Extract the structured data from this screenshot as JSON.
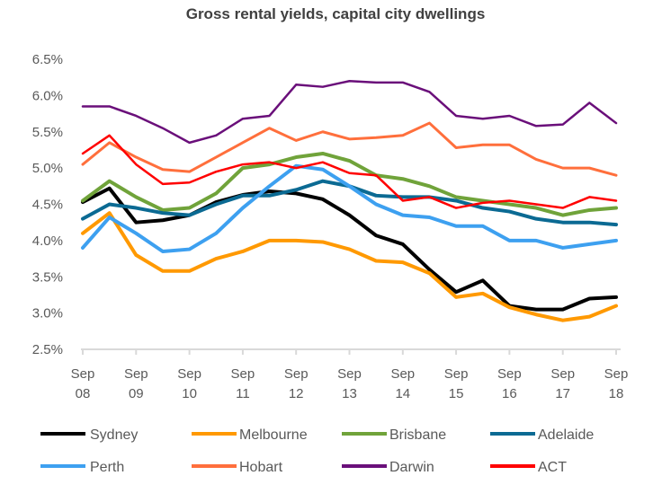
{
  "chart_data": {
    "type": "line",
    "title": "Gross rental yields, capital city dwellings",
    "xlabel": "",
    "ylabel": "",
    "ylim": [
      2.5,
      6.5
    ],
    "yticks": [
      "2.5%",
      "3.0%",
      "3.5%",
      "4.0%",
      "4.5%",
      "5.0%",
      "5.5%",
      "6.0%",
      "6.5%"
    ],
    "xticks": [
      [
        "Sep",
        "08"
      ],
      [
        "Sep",
        "09"
      ],
      [
        "Sep",
        "10"
      ],
      [
        "Sep",
        "11"
      ],
      [
        "Sep",
        "12"
      ],
      [
        "Sep",
        "13"
      ],
      [
        "Sep",
        "14"
      ],
      [
        "Sep",
        "15"
      ],
      [
        "Sep",
        "16"
      ],
      [
        "Sep",
        "17"
      ],
      [
        "Sep",
        "18"
      ]
    ],
    "x": [
      "Sep 08",
      "Mar 09",
      "Sep 09",
      "Mar 10",
      "Sep 10",
      "Mar 11",
      "Sep 11",
      "Mar 12",
      "Sep 12",
      "Mar 13",
      "Sep 13",
      "Mar 14",
      "Sep 14",
      "Mar 15",
      "Sep 15",
      "Mar 16",
      "Sep 16",
      "Mar 17",
      "Sep 17",
      "Mar 18",
      "Sep 18"
    ],
    "grid": false,
    "legend": "bottom",
    "series": [
      {
        "name": "Sydney",
        "color": "#000000",
        "width": 4,
        "values": [
          4.53,
          4.72,
          4.25,
          4.28,
          4.35,
          4.53,
          4.63,
          4.68,
          4.65,
          4.57,
          4.35,
          4.07,
          3.95,
          3.6,
          3.29,
          3.45,
          3.1,
          3.05,
          3.05,
          3.2,
          3.22
        ]
      },
      {
        "name": "Melbourne",
        "color": "#FF9900",
        "width": 4,
        "values": [
          4.1,
          4.38,
          3.8,
          3.58,
          3.58,
          3.75,
          3.85,
          4.0,
          4.0,
          3.98,
          3.88,
          3.72,
          3.7,
          3.55,
          3.22,
          3.27,
          3.08,
          2.98,
          2.9,
          2.95,
          3.1
        ]
      },
      {
        "name": "Brisbane",
        "color": "#70A33A",
        "width": 4,
        "values": [
          4.55,
          4.82,
          4.6,
          4.42,
          4.45,
          4.65,
          5.0,
          5.05,
          5.15,
          5.2,
          5.1,
          4.9,
          4.85,
          4.75,
          4.6,
          4.55,
          4.5,
          4.45,
          4.35,
          4.42,
          4.45
        ]
      },
      {
        "name": "Adelaide",
        "color": "#0B6A93",
        "width": 4,
        "values": [
          4.3,
          4.5,
          4.45,
          4.38,
          4.35,
          4.5,
          4.62,
          4.62,
          4.7,
          4.82,
          4.75,
          4.62,
          4.6,
          4.6,
          4.55,
          4.45,
          4.4,
          4.3,
          4.25,
          4.25,
          4.22
        ]
      },
      {
        "name": "Perth",
        "color": "#3DA0F0",
        "width": 4,
        "values": [
          3.9,
          4.32,
          4.1,
          3.85,
          3.88,
          4.1,
          4.45,
          4.75,
          5.03,
          4.98,
          4.75,
          4.5,
          4.35,
          4.32,
          4.2,
          4.2,
          4.0,
          4.0,
          3.9,
          3.95,
          4.0
        ]
      },
      {
        "name": "Hobart",
        "color": "#FF6F3C",
        "width": 3,
        "values": [
          5.05,
          5.35,
          5.15,
          4.98,
          4.95,
          5.15,
          5.35,
          5.55,
          5.38,
          5.5,
          5.4,
          5.42,
          5.45,
          5.62,
          5.28,
          5.32,
          5.32,
          5.12,
          5.0,
          5.0,
          4.9
        ]
      },
      {
        "name": "Darwin",
        "color": "#6A0F7A",
        "width": 2.5,
        "values": [
          5.85,
          5.85,
          5.72,
          5.55,
          5.35,
          5.45,
          5.68,
          5.72,
          6.15,
          6.12,
          6.2,
          6.18,
          6.18,
          6.05,
          5.72,
          5.68,
          5.72,
          5.58,
          5.6,
          5.9,
          5.62
        ]
      },
      {
        "name": "ACT",
        "color": "#FF0000",
        "width": 2.5,
        "values": [
          5.2,
          5.45,
          5.05,
          4.78,
          4.8,
          4.95,
          5.05,
          5.08,
          5.0,
          5.08,
          4.93,
          4.9,
          4.55,
          4.6,
          4.45,
          4.52,
          4.55,
          4.5,
          4.45,
          4.6,
          4.55
        ]
      }
    ]
  }
}
